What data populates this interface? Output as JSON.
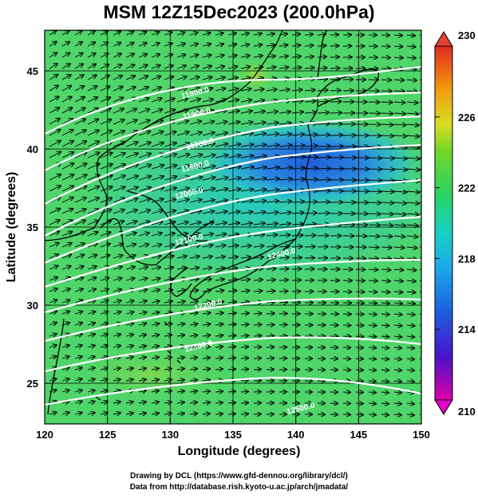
{
  "title": "MSM 12Z15Dec2023 (200.0hPa)",
  "xlabel": "Longitude (degrees)",
  "ylabel": "Latitude  (degrees)",
  "credits": {
    "line1": "Drawing by DCL (https://www.gfd-dennou.org/library/dcl/)",
    "line2": "Data from http://database.rish.kyoto-u.ac.jp/arch/jmadata/"
  },
  "x_ticks": [
    "120",
    "125",
    "130",
    "135",
    "140",
    "145",
    "150"
  ],
  "y_ticks": [
    "25",
    "30",
    "35",
    "40",
    "45"
  ],
  "colorbar": {
    "labels": [
      "230",
      "226",
      "222",
      "218",
      "214",
      "210"
    ],
    "stops": [
      "#e0007a",
      "#3a17c8",
      "#1d75e8",
      "#19c7d6",
      "#25d36a",
      "#79d62a",
      "#d9dd24",
      "#f28a0c",
      "#e03023"
    ]
  },
  "contour_labels": [
    "11800.0",
    "11900.0",
    "11700.0",
    "11600.0",
    "12000.0",
    "12100.0",
    "12200.0",
    "12300.0",
    "12400.0",
    "12500.0"
  ],
  "colors": {
    "field_green": "#4fd56a",
    "field_cyan": "#22c9c6",
    "field_blue": "#2a7ad8",
    "contour": "#ffffff",
    "vector": "#000000",
    "coast": "#000000"
  },
  "chart_data": {
    "type": "map",
    "title": "MSM 12Z15Dec2023 (200.0hPa)",
    "xlabel": "Longitude (degrees)",
    "ylabel": "Latitude  (degrees)",
    "xlim": [
      120,
      150
    ],
    "ylim": [
      22.4,
      47.6
    ],
    "colorbar_range": [
      210,
      230
    ],
    "colorbar_ticks": [
      230,
      226,
      222,
      218,
      214,
      210
    ],
    "contour_levels": [
      11600,
      11700,
      11800,
      11900,
      12000,
      12100,
      12200,
      12300,
      12400,
      12500
    ],
    "grid": true
  }
}
